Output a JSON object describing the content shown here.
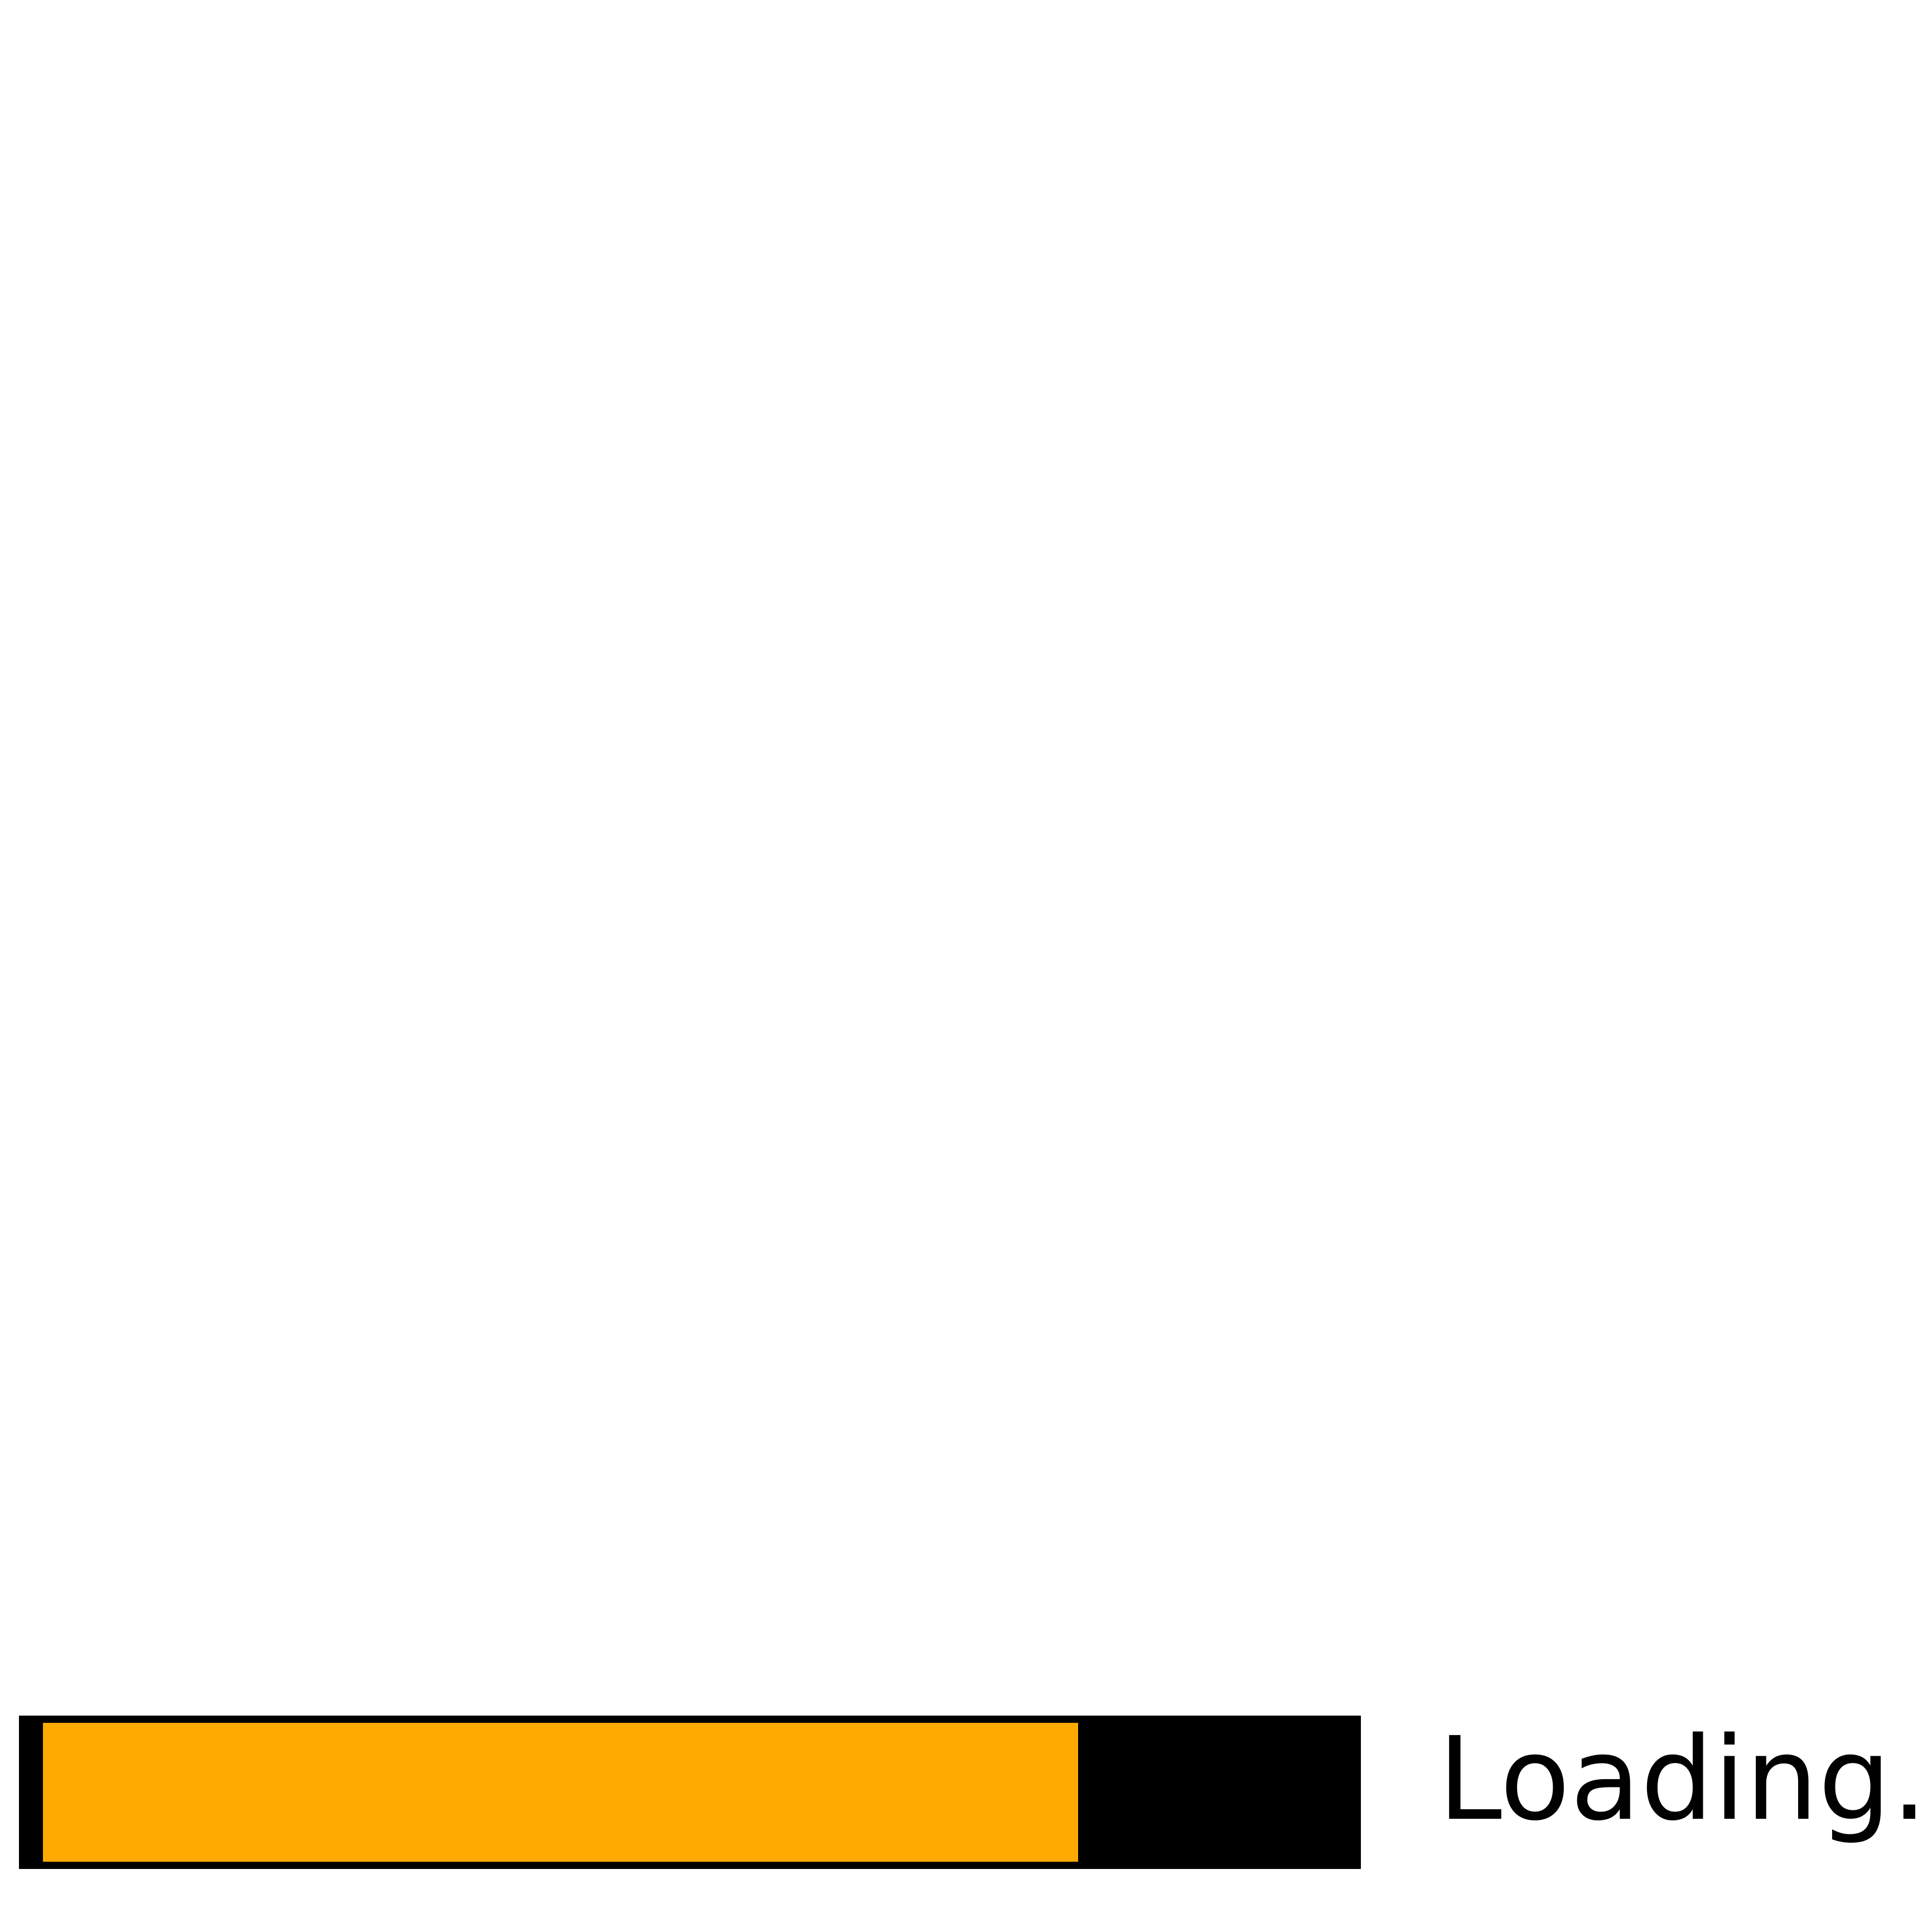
{
  "loader": {
    "progress": 0.8,
    "label": "Loading...",
    "colors": {
      "fill": "#FFAA00",
      "track": "#000000",
      "background": "#FFFFFF"
    }
  }
}
